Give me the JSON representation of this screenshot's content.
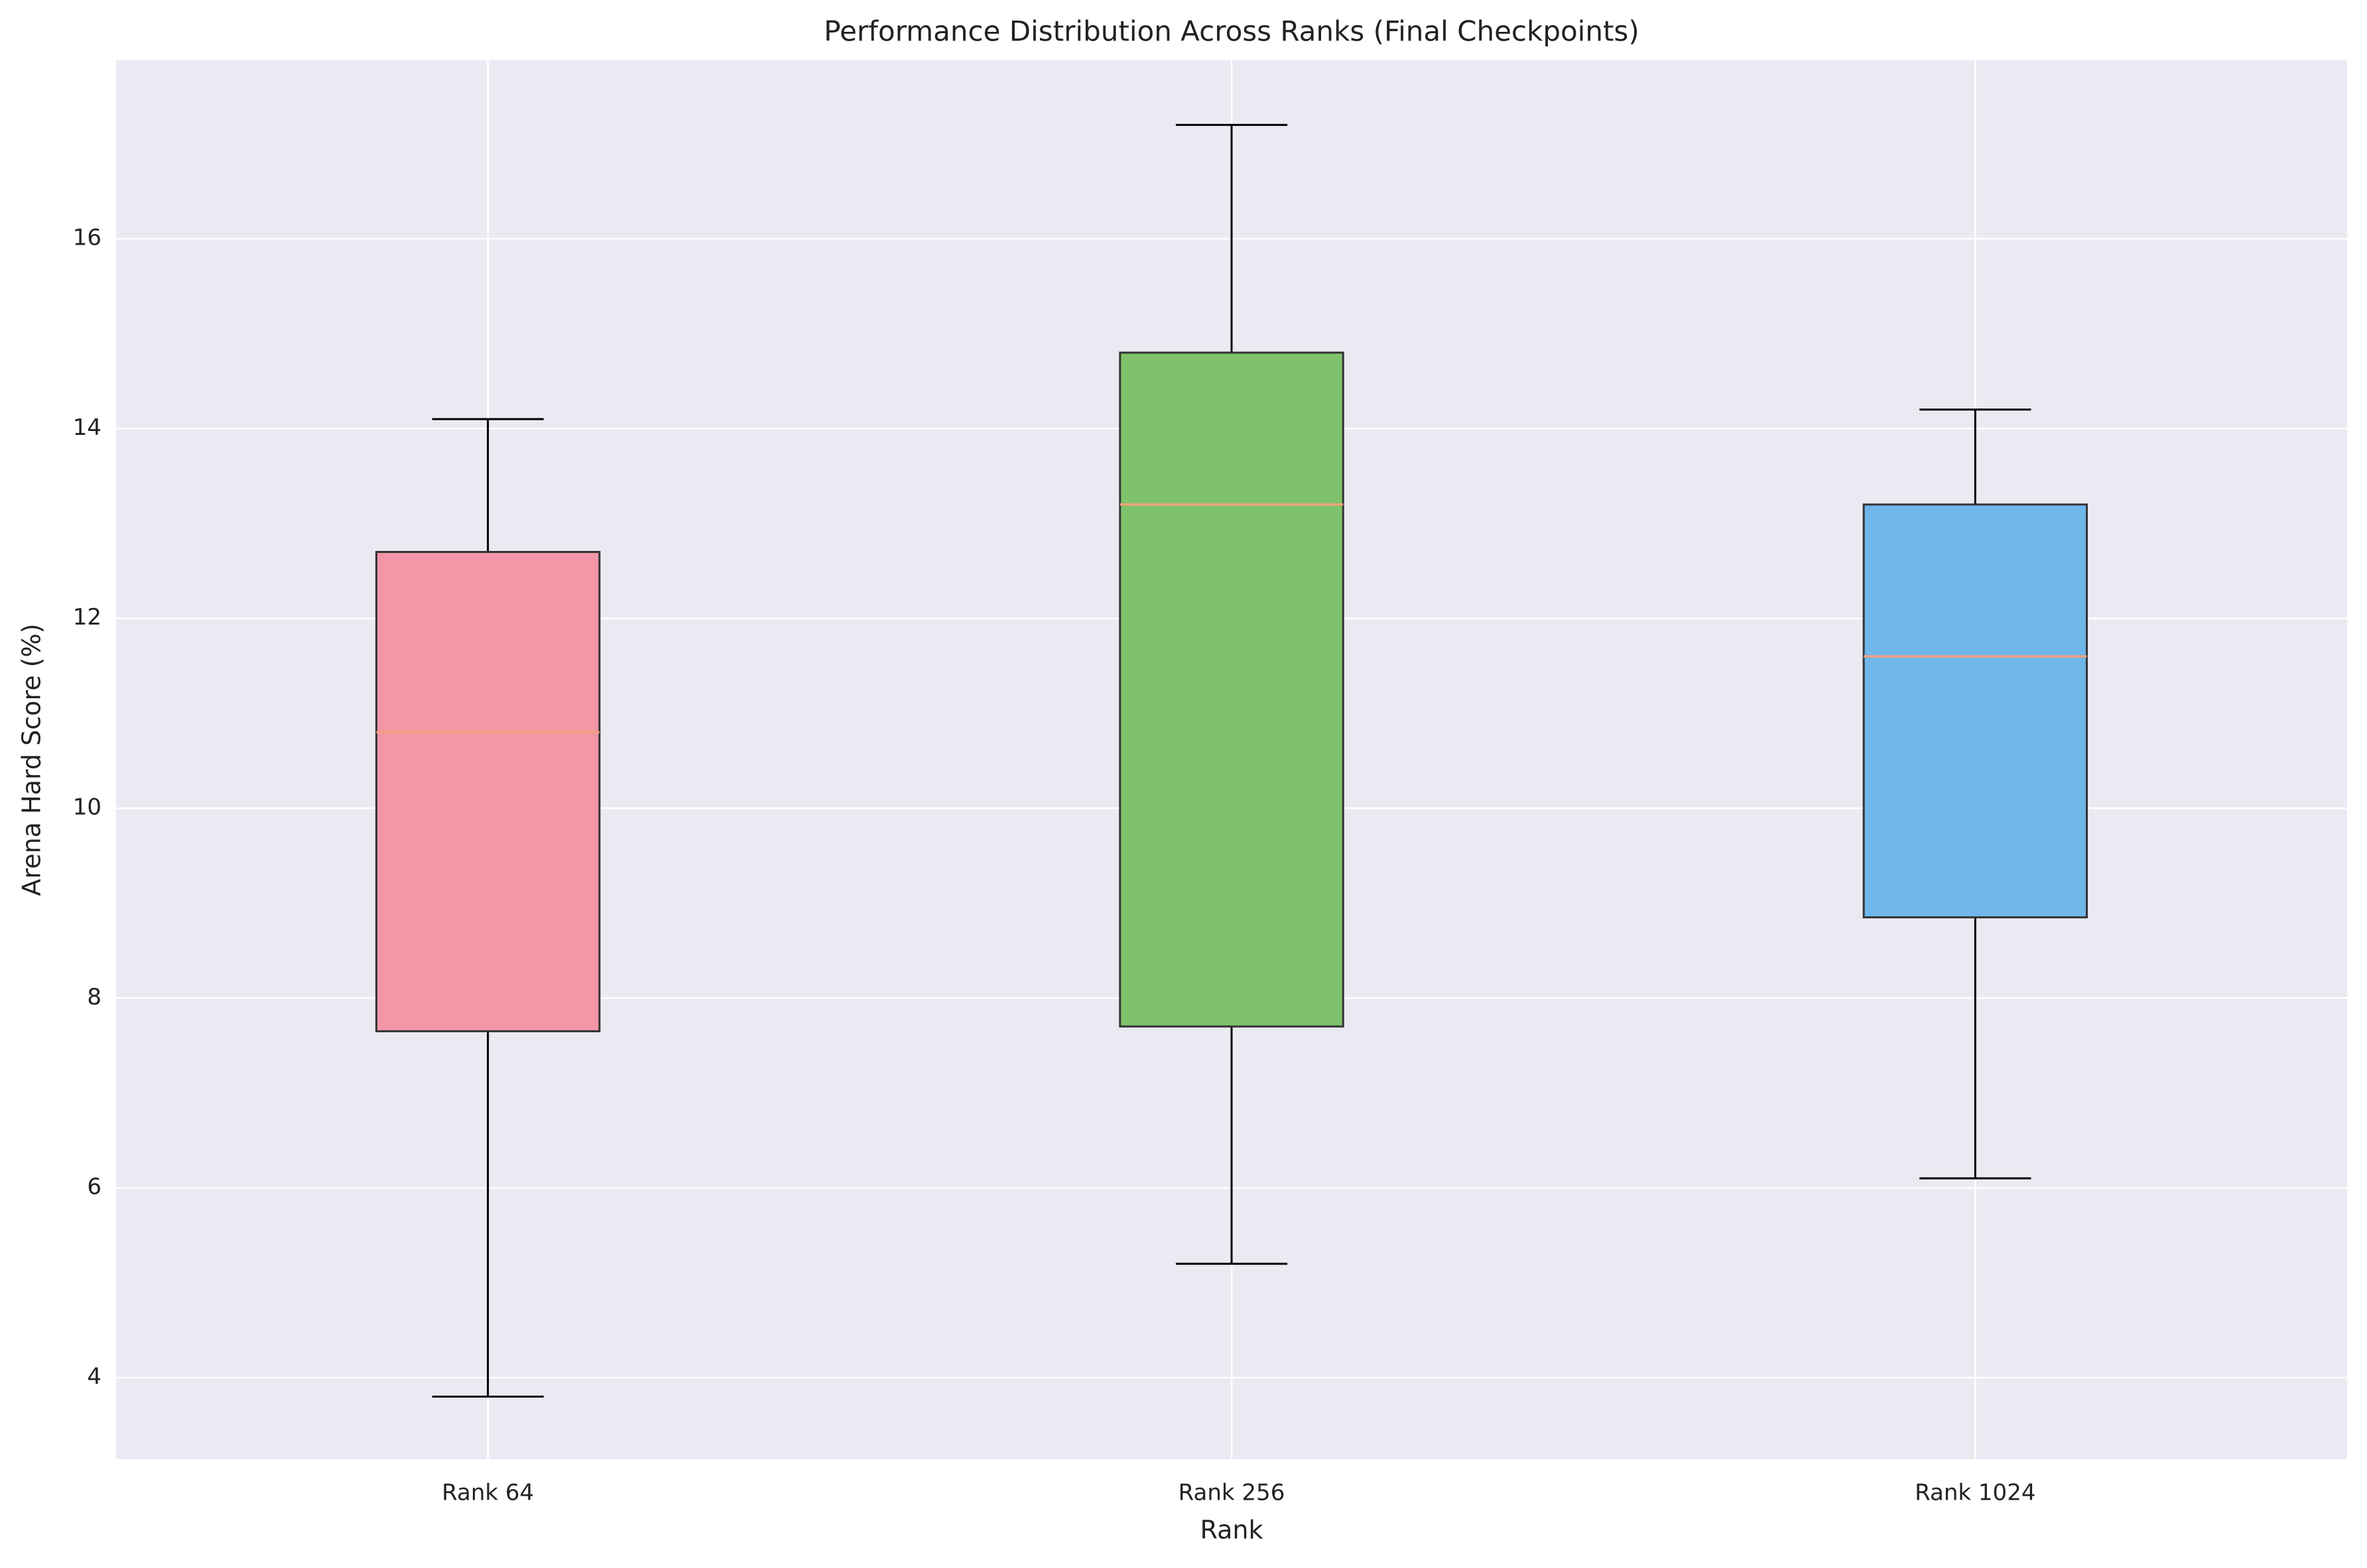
{
  "chart_data": {
    "type": "box",
    "title": "Performance Distribution Across Ranks (Final Checkpoints)",
    "x_label": "Rank",
    "y_label": "Arena Hard Score (%)",
    "categories": [
      "Rank 64",
      "Rank 256",
      "Rank 1024"
    ],
    "boxes": [
      {
        "min": 3.8,
        "q1": 7.65,
        "median": 10.8,
        "q3": 12.7,
        "max": 14.1,
        "color": "#f296a8"
      },
      {
        "min": 5.2,
        "q1": 7.7,
        "median": 13.2,
        "q3": 14.8,
        "max": 17.2,
        "color": "#7ec36b"
      },
      {
        "min": 6.1,
        "q1": 8.85,
        "median": 11.6,
        "q3": 13.2,
        "max": 14.2,
        "color": "#6fb6ea"
      }
    ],
    "median_color": "#f4a07a",
    "ylim": [
      3.14,
      17.88
    ],
    "yticks": [
      4,
      6,
      8,
      10,
      12,
      14,
      16
    ],
    "grid": true
  }
}
